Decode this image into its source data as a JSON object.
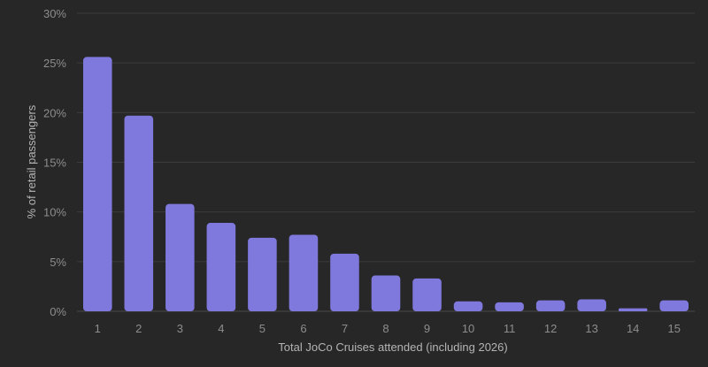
{
  "chart_data": {
    "type": "bar",
    "title": "",
    "xlabel": "Total JoCo Cruises attended (including 2026)",
    "ylabel": "% of retail passengers",
    "categories": [
      "1",
      "2",
      "3",
      "4",
      "5",
      "6",
      "7",
      "8",
      "9",
      "10",
      "11",
      "12",
      "13",
      "14",
      "15"
    ],
    "values": [
      25.6,
      19.7,
      10.8,
      8.9,
      7.4,
      7.7,
      5.8,
      3.6,
      3.3,
      1.0,
      0.9,
      1.1,
      1.2,
      0.3,
      1.1
    ],
    "ylim": [
      0,
      30
    ],
    "yticks": [
      0,
      5,
      10,
      15,
      20,
      25,
      30
    ],
    "ytick_labels": [
      "0%",
      "5%",
      "10%",
      "15%",
      "20%",
      "25%",
      "30%"
    ],
    "grid": true,
    "legend": "none",
    "colors": {
      "bar": "#7f78dd",
      "background": "#272727",
      "grid": "#3c3c3c",
      "tick_text": "#8d8d8d",
      "axis_title_text": "#b4b4b4"
    }
  }
}
